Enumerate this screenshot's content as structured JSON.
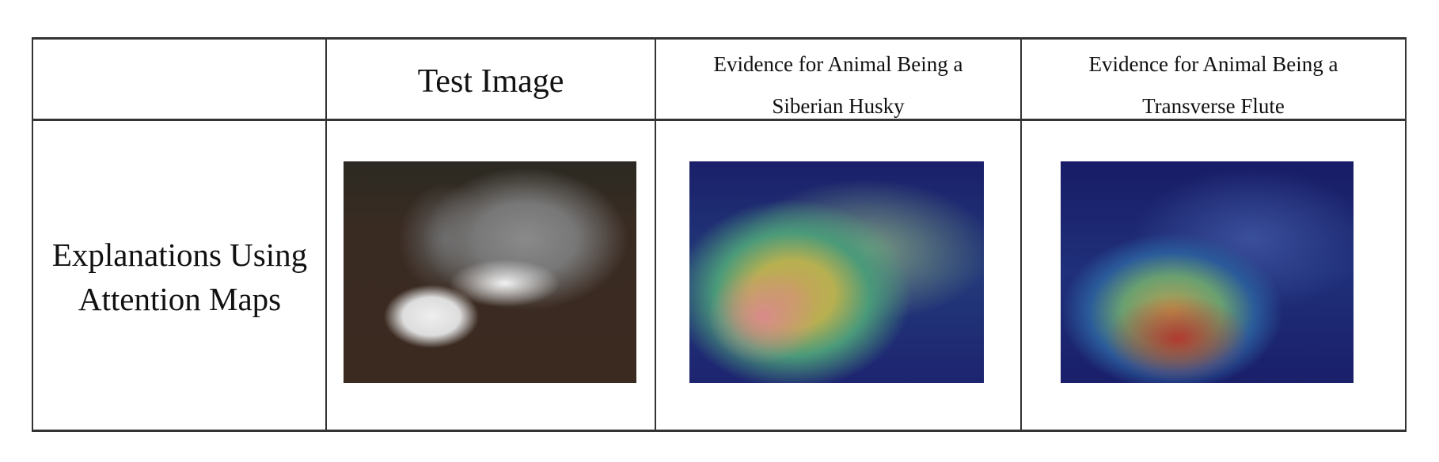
{
  "table": {
    "headers": [
      "",
      "Test Image",
      "Evidence for Animal Being a Siberian Husky",
      "Evidence for Animal Being a Transverse Flute"
    ],
    "header_lines": {
      "test": "Test Image",
      "husky_1": "Evidence for Animal Being a",
      "husky_2": "Siberian Husky",
      "flute_1": "Evidence for Animal Being a",
      "flute_2": "Transverse Flute"
    },
    "row_label_lines": [
      "Explanations Using",
      "Attention Maps"
    ],
    "images": [
      "husky-photo",
      "husky-attention-map",
      "flute-attention-map"
    ]
  }
}
